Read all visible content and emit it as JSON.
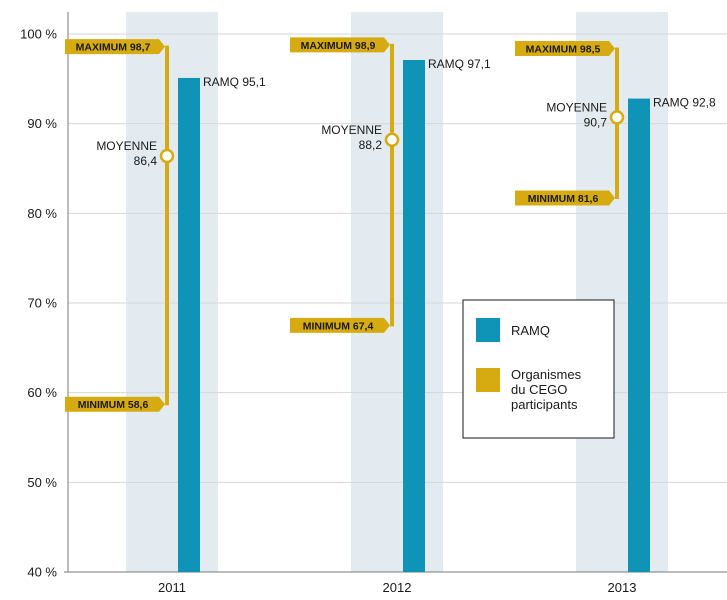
{
  "chart_data": {
    "type": "bar",
    "categories": [
      "2011",
      "2012",
      "2013"
    ],
    "ylim": [
      40,
      100
    ],
    "yticks": [
      {
        "value": 40,
        "label": "40 %"
      },
      {
        "value": 50,
        "label": "50 %"
      },
      {
        "value": 60,
        "label": "60 %"
      },
      {
        "value": 70,
        "label": "70 %"
      },
      {
        "value": 80,
        "label": "80 %"
      },
      {
        "value": 90,
        "label": "90 %"
      },
      {
        "value": 100,
        "label": "100 %"
      }
    ],
    "grid": true,
    "series": [
      {
        "name": "RAMQ",
        "kind": "bar",
        "values": [
          95.1,
          97.1,
          92.8
        ],
        "labels": [
          "RAMQ 95,1",
          "RAMQ 97,1",
          "RAMQ 92,8"
        ]
      },
      {
        "name": "Organismes du CEGO participants",
        "kind": "range",
        "max": [
          98.7,
          98.9,
          98.5
        ],
        "max_labels": [
          "MAXIMUM 98,7",
          "MAXIMUM 98,9",
          "MAXIMUM 98,5"
        ],
        "mean": [
          86.4,
          88.2,
          90.7
        ],
        "mean_labels": [
          [
            "MOYENNE",
            "86,4"
          ],
          [
            "MOYENNE",
            "88,2"
          ],
          [
            "MOYENNE",
            "90,7"
          ]
        ],
        "min": [
          58.6,
          67.4,
          81.6
        ],
        "min_labels": [
          "MINIMUM 58,6",
          "MINIMUM 67,4",
          "MINIMUM 81,6"
        ]
      }
    ],
    "legend": {
      "position": "right",
      "items": [
        {
          "label_lines": [
            "RAMQ"
          ],
          "color": "#0f94b8"
        },
        {
          "label_lines": [
            "Organismes",
            "du CEGO",
            "participants"
          ],
          "color": "#d6ab12"
        }
      ]
    },
    "colors": {
      "bar": "#0f94b8",
      "range": "#d6ab12",
      "band": "#e3ebf1",
      "grid": "#d7d7d7",
      "axis": "#7a7a7a"
    }
  }
}
